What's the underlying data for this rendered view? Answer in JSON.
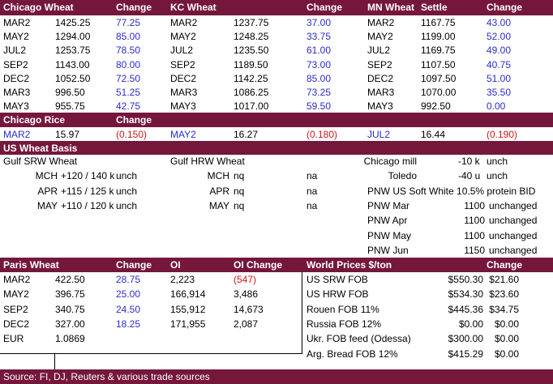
{
  "futures": {
    "headers": {
      "chicago": "Chicago Wheat",
      "chicago_change": "Change",
      "kc": "KC Wheat",
      "kc_change": "Change",
      "mn": "MN Wheat",
      "mn_settle": "Settle",
      "mn_change": "Change"
    },
    "rows": [
      [
        "MAR2",
        "1425.25",
        "77.25",
        "MAR2",
        "1237.75",
        "37.00",
        "MAR2",
        "1167.75",
        "43.00"
      ],
      [
        "MAY2",
        "1294.00",
        "85.00",
        "MAY2",
        "1248.25",
        "33.75",
        "MAY2",
        "1199.00",
        "52.00"
      ],
      [
        "JUL2",
        "1253.75",
        "78.50",
        "JUL2",
        "1235.50",
        "61.00",
        "JUL2",
        "1169.75",
        "49.00"
      ],
      [
        "SEP2",
        "1143.00",
        "80.00",
        "SEP2",
        "1189.50",
        "73.00",
        "SEP2",
        "1107.50",
        "40.75"
      ],
      [
        "DEC2",
        "1052.50",
        "72.50",
        "DEC2",
        "1142.25",
        "85.00",
        "DEC2",
        "1097.50",
        "51.00"
      ],
      [
        "MAR3",
        "996.50",
        "51.25",
        "MAR3",
        "1086.25",
        "73.25",
        "MAR3",
        "1070.00",
        "35.50"
      ],
      [
        "MAY3",
        "955.75",
        "42.75",
        "MAY3",
        "1017.00",
        "59.50",
        "MAY3",
        "992.50",
        "0.00"
      ]
    ]
  },
  "rice": {
    "headers": {
      "title": "Chicago Rice",
      "change": "Change"
    },
    "row": [
      "MAR2",
      "15.97",
      "(0.150)",
      "MAY2",
      "16.27",
      "(0.180)",
      "JUL2",
      "16.44",
      "(0.190)"
    ]
  },
  "basis": {
    "title": "US Wheat Basis",
    "left_title": "Gulf SRW Wheat",
    "mid_title": "Gulf HRW Wheat",
    "left_rows": [
      [
        "MCH",
        "+120 / 140 k",
        "unch"
      ],
      [
        "APR",
        "+115 / 125 k",
        "unch"
      ],
      [
        "MAY",
        "+110 / 120 k",
        "unch"
      ]
    ],
    "mid_rows": [
      [
        "MCH",
        "nq",
        "na"
      ],
      [
        "APR",
        "nq",
        "na"
      ],
      [
        "MAY",
        "nq",
        "na"
      ]
    ],
    "right_rows": [
      [
        "Chicago mill",
        "-10 k",
        "unch"
      ],
      [
        "Toledo",
        "-40 u",
        "unch"
      ]
    ],
    "pnw_title": "PNW US Soft White 10.5% protein BID",
    "pnw_rows": [
      [
        "PNW Mar",
        "1100",
        "unchanged"
      ],
      [
        "PNW Apr",
        "1100",
        "unchanged"
      ],
      [
        "PNW May",
        "1100",
        "unchanged"
      ],
      [
        "PNW Jun",
        "1150",
        "unchanged"
      ]
    ]
  },
  "paris": {
    "headers": {
      "title": "Paris Wheat",
      "change": "Change",
      "oi": "OI",
      "oi_change": "OI Change"
    },
    "rows": [
      [
        "MAR2",
        "422.50",
        "28.75",
        "2,223",
        "(547)"
      ],
      [
        "MAY2",
        "396.75",
        "25.00",
        "166,914",
        "3,486"
      ],
      [
        "SEP2",
        "340.75",
        "24.50",
        "155,912",
        "14,673"
      ],
      [
        "DEC2",
        "327.00",
        "18.25",
        "171,955",
        "2,087"
      ]
    ],
    "eur": [
      "EUR",
      "1.0869"
    ]
  },
  "world": {
    "headers": {
      "title": "World Prices $/ton",
      "change": "Change"
    },
    "rows": [
      [
        "US SRW FOB",
        "$550.30",
        "$21.60"
      ],
      [
        "US HRW FOB",
        "$534.30",
        "$23.60"
      ],
      [
        "Rouen FOB 11%",
        "$445.36",
        "$34.75"
      ],
      [
        "Russia FOB 12%",
        "$0.00",
        "$0.00"
      ],
      [
        "Ukr. FOB feed (Odessa)",
        "$300.00",
        "$0.00"
      ],
      [
        "Arg. Bread FOB 12%",
        "$415.29",
        "$0.00"
      ]
    ]
  },
  "footer": "Source: FI, DJ, Reuters & various trade sources"
}
